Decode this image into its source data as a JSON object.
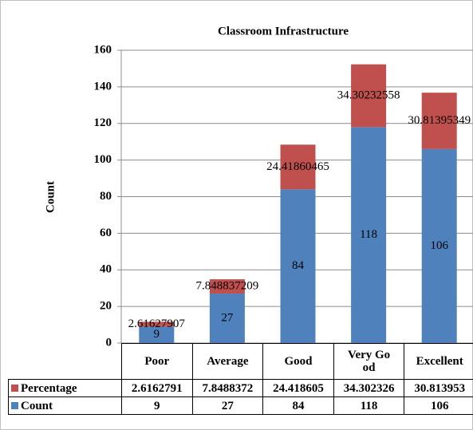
{
  "chart_data": {
    "type": "stacked_bar",
    "title": "Classroom Infrastructure",
    "y_label": "Count",
    "categories": [
      "Poor",
      "Average",
      "Good",
      "Very Good",
      "Excellent"
    ],
    "series": [
      {
        "name": "Count",
        "color": "#4f81bd",
        "values": [
          9,
          27,
          84,
          118,
          106
        ]
      },
      {
        "name": "Percentage",
        "color": "#c0504d",
        "values": [
          2.61627907,
          7.848837209,
          24.41860465,
          34.30232558,
          30.81395349
        ],
        "value_labels": [
          "2.6162791",
          "7.8488372",
          "24.418605",
          "34.302326",
          "30.813953"
        ]
      }
    ],
    "ylim": [
      0,
      160
    ],
    "yticks": [
      0,
      20,
      40,
      60,
      80,
      100,
      120,
      140,
      160
    ],
    "grid": true
  }
}
